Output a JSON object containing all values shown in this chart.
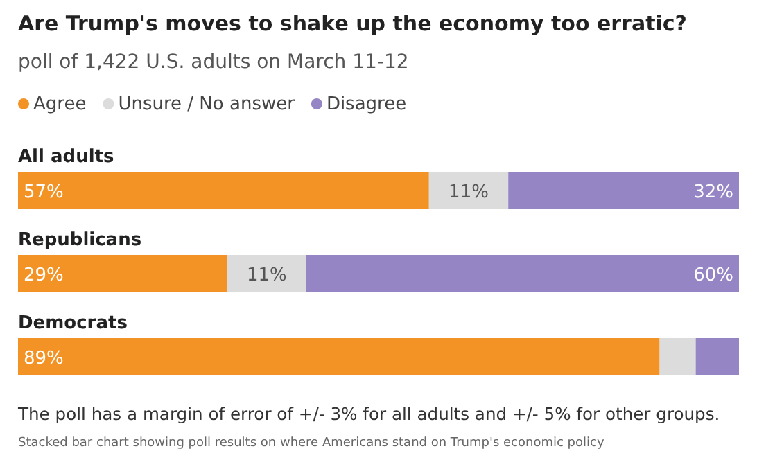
{
  "chart_data": {
    "type": "bar",
    "orientation": "horizontal",
    "stacked": true,
    "title": "Are Trump's moves to shake up the economy too erratic?",
    "subtitle": "poll of 1,422 U.S. adults on March 11-12",
    "categories": [
      "All adults",
      "Republicans",
      "Democrats"
    ],
    "series": [
      {
        "name": "Agree",
        "color": "#f39325",
        "values": [
          57,
          29,
          89
        ],
        "value_labels": [
          "57%",
          "29%",
          "89%"
        ]
      },
      {
        "name": "Unsure / No answer",
        "color": "#dcdcdc",
        "values": [
          11,
          11,
          5
        ],
        "value_labels": [
          "11%",
          "11%",
          null
        ]
      },
      {
        "name": "Disagree",
        "color": "#9585c4",
        "values": [
          32,
          60,
          6
        ],
        "value_labels": [
          "32%",
          "60%",
          null
        ]
      }
    ],
    "legend": "top left",
    "annotations": [
      "The poll has a margin of error of +/- 3% for all adults and +/- 5% for other groups.",
      "Stacked bar chart showing poll results on where Americans stand on Trump's economic policy"
    ]
  }
}
